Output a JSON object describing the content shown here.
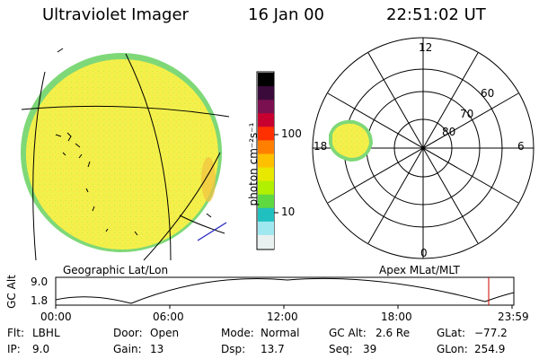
{
  "header": {
    "instrument": "Ultraviolet Imager",
    "date": "16 Jan 00",
    "time": "22:51:02 UT"
  },
  "colorbar": {
    "label": "photon cm⁻²s⁻¹",
    "ticks": [
      "100",
      "10"
    ],
    "colors": [
      "#000000",
      "#3a0a3a",
      "#7a1050",
      "#c80030",
      "#ff3000",
      "#ff8000",
      "#ffc000",
      "#e8e800",
      "#b0f000",
      "#60d840",
      "#20c0c0",
      "#a0e8f0",
      "#e8f0f0"
    ]
  },
  "left_panel": {
    "caption": "Geographic Lat/Lon"
  },
  "right_panel": {
    "caption": "Apex MLat/MLT",
    "lat_labels": [
      "80",
      "70",
      "60"
    ],
    "mlt_labels": {
      "top": "12",
      "left": "18",
      "right": "6",
      "bottom": "0"
    }
  },
  "altitude_plot": {
    "ylabel": "GC Alt",
    "yticks": [
      "9.0",
      "1.8"
    ],
    "xticks": [
      "00:00",
      "06:00",
      "12:00",
      "18:00",
      "23:59"
    ]
  },
  "info": [
    {
      "label": "Flt:",
      "value": "LBHL"
    },
    {
      "label": "IP:",
      "value": "9.0"
    },
    {
      "label": "Door:",
      "value": "Open"
    },
    {
      "label": "Gain:",
      "value": "13"
    },
    {
      "label": "Mode:",
      "value": "Normal"
    },
    {
      "label": "Dsp:",
      "value": "13.7"
    },
    {
      "label": "GC Alt:",
      "value": "2.6 Re"
    },
    {
      "label": "Seq:",
      "value": "39"
    },
    {
      "label": "GLat:",
      "value": "−77.2"
    },
    {
      "label": "GLon:",
      "value": "254.9"
    }
  ],
  "colors": {
    "image_fill": "#f0ee50",
    "image_edge": "#6cd07a",
    "accent_red": "#d00000",
    "blue_line": "#2020c0"
  }
}
